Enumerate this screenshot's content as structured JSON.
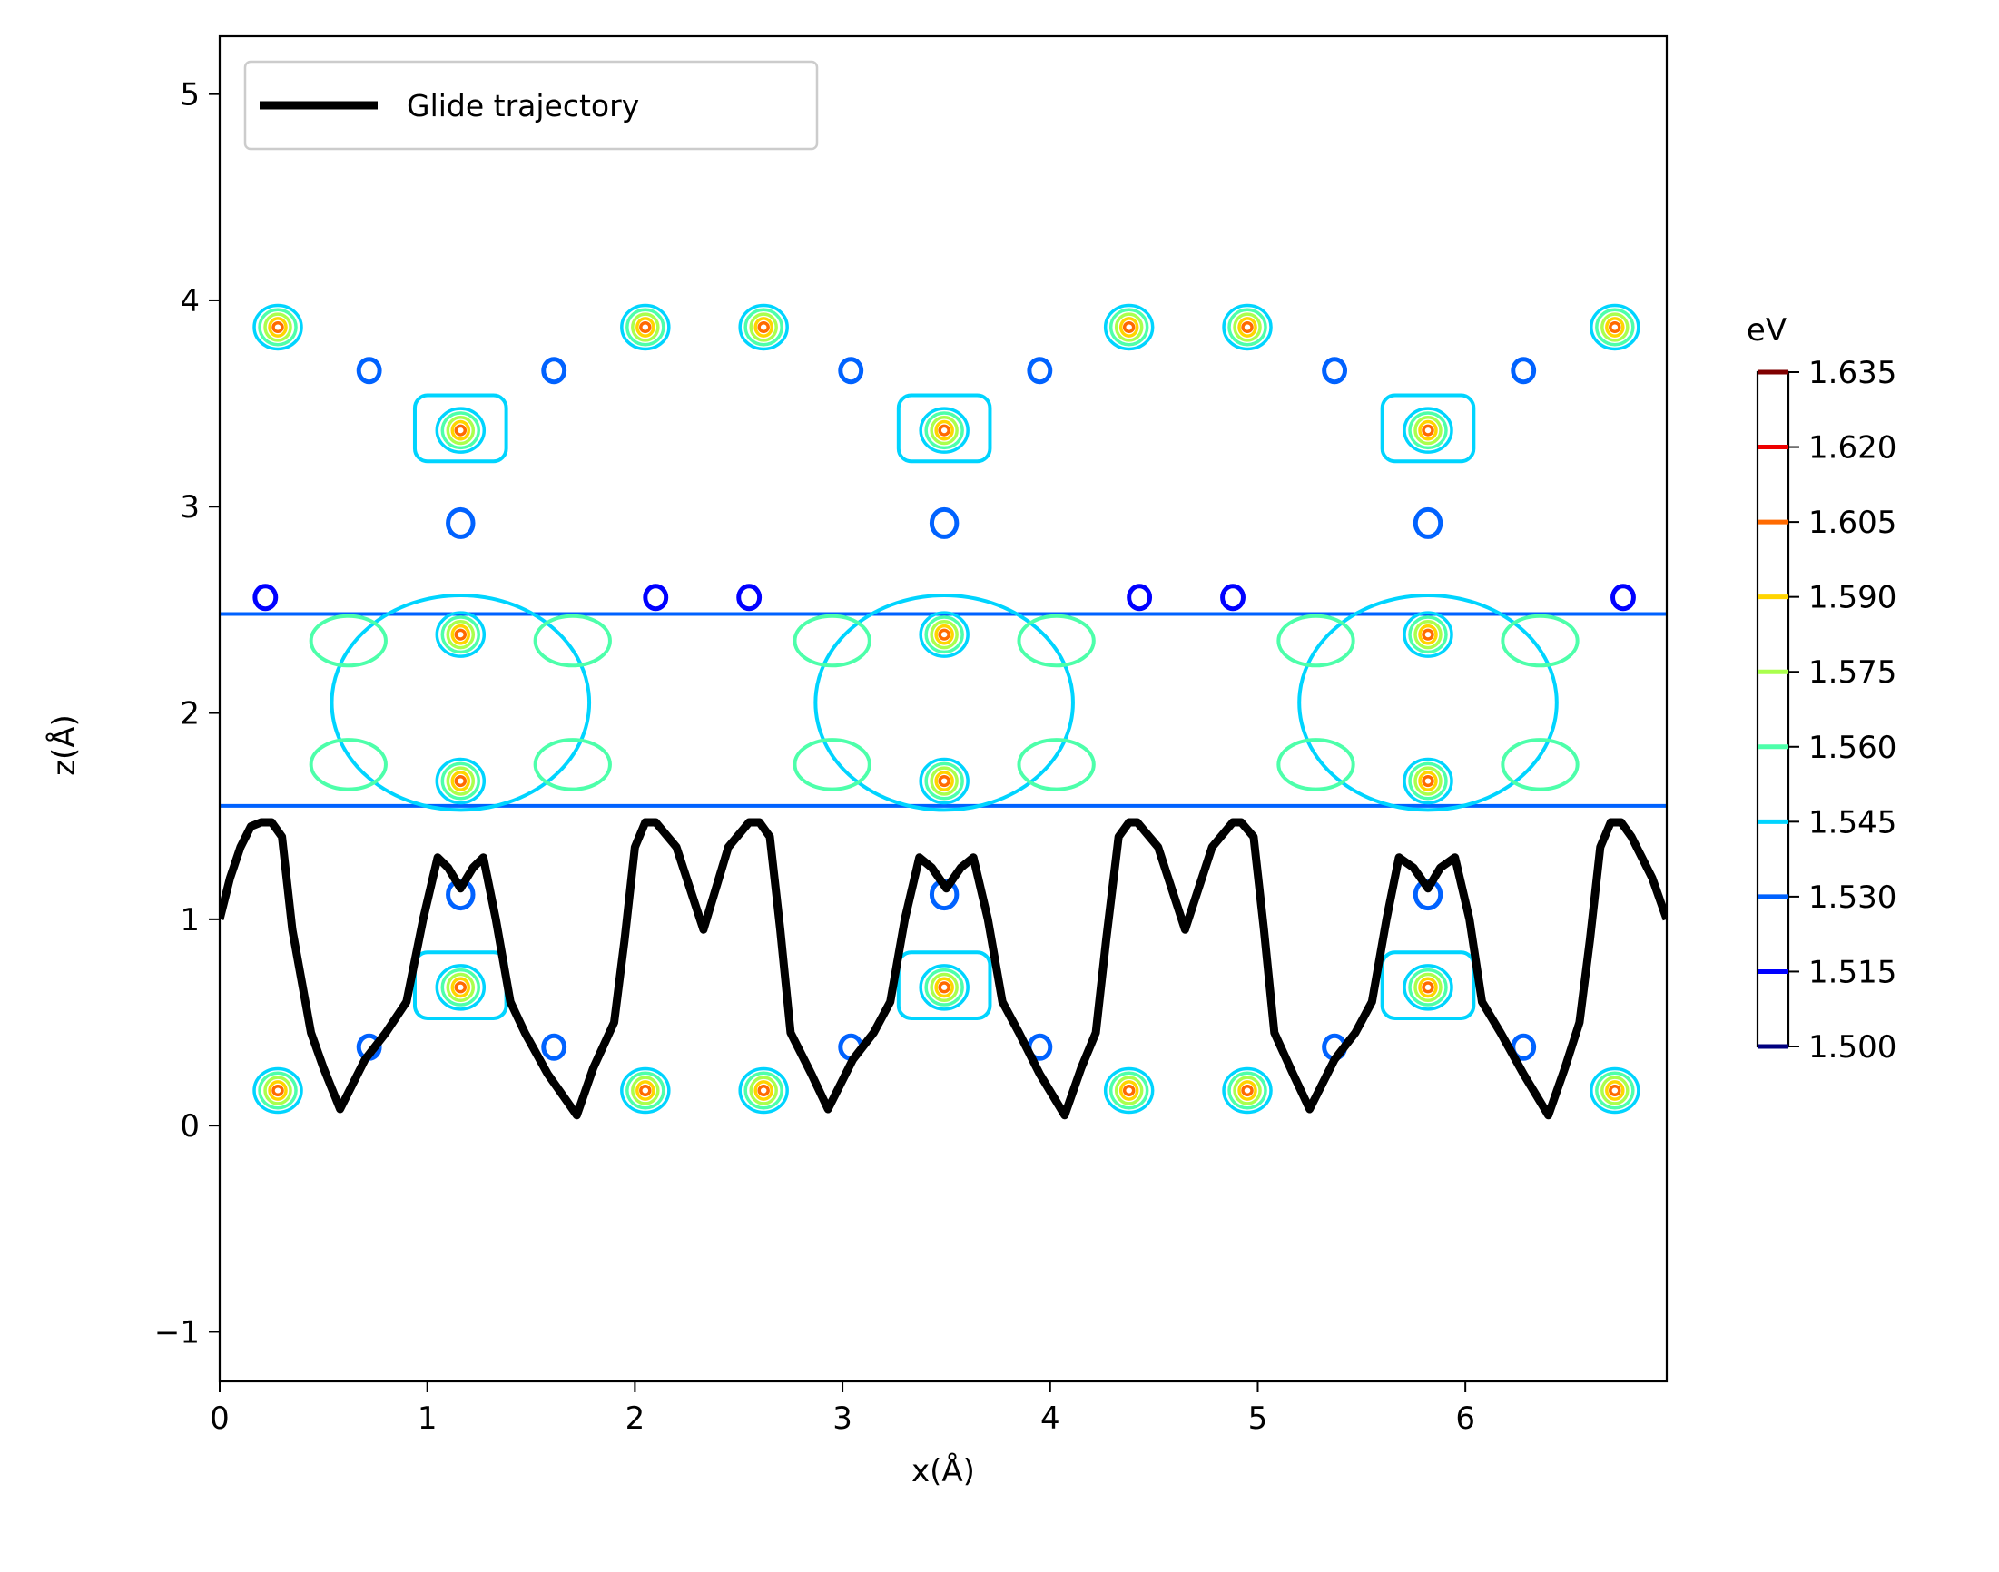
{
  "chart_data": {
    "type": "contour",
    "xlabel": "x(Å)",
    "ylabel": "z(Å)",
    "xlim": [
      0,
      6.97
    ],
    "ylim": [
      -1.24,
      5.28
    ],
    "x_ticks": [
      0,
      1,
      2,
      3,
      4,
      5,
      6
    ],
    "x_tick_labels": [
      "0",
      "1",
      "2",
      "3",
      "4",
      "5",
      "6"
    ],
    "y_ticks": [
      -1,
      0,
      1,
      2,
      3,
      4,
      5
    ],
    "y_tick_labels": [
      "−1",
      "0",
      "1",
      "2",
      "3",
      "4",
      "5"
    ],
    "grid": false,
    "legend": {
      "position": "upper-left",
      "entries": [
        "Glide trajectory"
      ]
    },
    "colorbar": {
      "title": "eV",
      "levels": [
        1.5,
        1.515,
        1.53,
        1.545,
        1.56,
        1.575,
        1.59,
        1.605,
        1.62,
        1.635
      ],
      "labels": [
        "1.500",
        "1.515",
        "1.530",
        "1.545",
        "1.560",
        "1.575",
        "1.590",
        "1.605",
        "1.620",
        "1.635"
      ],
      "colors": [
        "#00007f",
        "#0000ff",
        "#0062ff",
        "#00d4ff",
        "#4dffaa",
        "#aaff4d",
        "#ffd400",
        "#ff6a00",
        "#ee0000",
        "#7f0000"
      ]
    },
    "series": [
      {
        "name": "Glide trajectory",
        "color": "#000000",
        "x": [
          0.0,
          0.05,
          0.1,
          0.15,
          0.2,
          0.25,
          0.3,
          0.35,
          0.44,
          0.5,
          0.58,
          0.7,
          0.8,
          0.9,
          0.98,
          1.05,
          1.1,
          1.16,
          1.22,
          1.27,
          1.33,
          1.4,
          1.47,
          1.58,
          1.72,
          1.8,
          1.9,
          1.95,
          2.0,
          2.05,
          2.1,
          2.2,
          2.33,
          2.45,
          2.55,
          2.6,
          2.65,
          2.7,
          2.75,
          2.85,
          2.93,
          3.05,
          3.15,
          3.23,
          3.3,
          3.37,
          3.43,
          3.5,
          3.57,
          3.63,
          3.7,
          3.77,
          3.85,
          3.95,
          4.07,
          4.15,
          4.22,
          4.27,
          4.33,
          4.38,
          4.42,
          4.52,
          4.65,
          4.78,
          4.88,
          4.92,
          4.98,
          5.03,
          5.08,
          5.17,
          5.25,
          5.37,
          5.47,
          5.55,
          5.62,
          5.68,
          5.75,
          5.82,
          5.88,
          5.95,
          6.02,
          6.08,
          6.17,
          6.28,
          6.4,
          6.48,
          6.55,
          6.6,
          6.65,
          6.7,
          6.75,
          6.8,
          6.85,
          6.9,
          6.97
        ],
        "y": [
          1.0,
          1.2,
          1.35,
          1.45,
          1.47,
          1.47,
          1.4,
          0.95,
          0.45,
          0.28,
          0.08,
          0.32,
          0.45,
          0.6,
          1.0,
          1.3,
          1.25,
          1.15,
          1.25,
          1.3,
          1.0,
          0.6,
          0.45,
          0.25,
          0.05,
          0.28,
          0.5,
          0.9,
          1.35,
          1.47,
          1.47,
          1.35,
          0.95,
          1.35,
          1.47,
          1.47,
          1.4,
          0.95,
          0.45,
          0.25,
          0.08,
          0.32,
          0.45,
          0.6,
          1.0,
          1.3,
          1.25,
          1.15,
          1.25,
          1.3,
          1.0,
          0.6,
          0.45,
          0.25,
          0.05,
          0.28,
          0.45,
          0.9,
          1.4,
          1.47,
          1.47,
          1.35,
          0.95,
          1.35,
          1.47,
          1.47,
          1.4,
          0.95,
          0.45,
          0.25,
          0.08,
          0.32,
          0.45,
          0.6,
          1.0,
          1.3,
          1.25,
          1.15,
          1.25,
          1.3,
          1.0,
          0.6,
          0.45,
          0.25,
          0.05,
          0.28,
          0.5,
          0.9,
          1.35,
          1.47,
          1.47,
          1.4,
          1.3,
          1.2,
          1.0
        ]
      }
    ],
    "contour_features": [
      {
        "kind": "line",
        "level": 1.53,
        "z": 2.48
      },
      {
        "kind": "line",
        "level": 1.53,
        "z": 1.55
      },
      {
        "kind": "ellipse",
        "level": 1.545,
        "x": 1.16,
        "z": 2.05,
        "rx": 0.62,
        "ry": 0.52
      },
      {
        "kind": "ellipse",
        "level": 1.545,
        "x": 3.49,
        "z": 2.05,
        "rx": 0.62,
        "ry": 0.52
      },
      {
        "kind": "ellipse",
        "level": 1.545,
        "x": 5.82,
        "z": 2.05,
        "rx": 0.62,
        "ry": 0.52
      },
      {
        "kind": "ellipse",
        "level": 1.56,
        "x": 0.62,
        "z": 2.35,
        "rx": 0.18,
        "ry": 0.12
      },
      {
        "kind": "ellipse",
        "level": 1.56,
        "x": 1.7,
        "z": 2.35,
        "rx": 0.18,
        "ry": 0.12
      },
      {
        "kind": "ellipse",
        "level": 1.56,
        "x": 2.95,
        "z": 2.35,
        "rx": 0.18,
        "ry": 0.12
      },
      {
        "kind": "ellipse",
        "level": 1.56,
        "x": 4.03,
        "z": 2.35,
        "rx": 0.18,
        "ry": 0.12
      },
      {
        "kind": "ellipse",
        "level": 1.56,
        "x": 5.28,
        "z": 2.35,
        "rx": 0.18,
        "ry": 0.12
      },
      {
        "kind": "ellipse",
        "level": 1.56,
        "x": 6.36,
        "z": 2.35,
        "rx": 0.18,
        "ry": 0.12
      },
      {
        "kind": "ellipse",
        "level": 1.56,
        "x": 0.62,
        "z": 1.75,
        "rx": 0.18,
        "ry": 0.12
      },
      {
        "kind": "ellipse",
        "level": 1.56,
        "x": 1.7,
        "z": 1.75,
        "rx": 0.18,
        "ry": 0.12
      },
      {
        "kind": "ellipse",
        "level": 1.56,
        "x": 2.95,
        "z": 1.75,
        "rx": 0.18,
        "ry": 0.12
      },
      {
        "kind": "ellipse",
        "level": 1.56,
        "x": 4.03,
        "z": 1.75,
        "rx": 0.18,
        "ry": 0.12
      },
      {
        "kind": "ellipse",
        "level": 1.56,
        "x": 5.28,
        "z": 1.75,
        "rx": 0.18,
        "ry": 0.12
      },
      {
        "kind": "ellipse",
        "level": 1.56,
        "x": 6.36,
        "z": 1.75,
        "rx": 0.18,
        "ry": 0.12
      },
      {
        "kind": "peak",
        "x": 1.16,
        "z": 2.38
      },
      {
        "kind": "peak",
        "x": 3.49,
        "z": 2.38
      },
      {
        "kind": "peak",
        "x": 5.82,
        "z": 2.38
      },
      {
        "kind": "peak",
        "x": 1.16,
        "z": 1.67
      },
      {
        "kind": "peak",
        "x": 3.49,
        "z": 1.67
      },
      {
        "kind": "peak",
        "x": 5.82,
        "z": 1.67
      },
      {
        "kind": "box",
        "level": 1.545,
        "x": 1.16,
        "z": 3.38,
        "rx": 0.22,
        "ry": 0.16
      },
      {
        "kind": "box",
        "level": 1.545,
        "x": 3.49,
        "z": 3.38,
        "rx": 0.22,
        "ry": 0.16
      },
      {
        "kind": "box",
        "level": 1.545,
        "x": 5.82,
        "z": 3.38,
        "rx": 0.22,
        "ry": 0.16
      },
      {
        "kind": "box",
        "level": 1.545,
        "x": 1.16,
        "z": 0.68,
        "rx": 0.22,
        "ry": 0.16
      },
      {
        "kind": "box",
        "level": 1.545,
        "x": 3.49,
        "z": 0.68,
        "rx": 0.22,
        "ry": 0.16
      },
      {
        "kind": "box",
        "level": 1.545,
        "x": 5.82,
        "z": 0.68,
        "rx": 0.22,
        "ry": 0.16
      },
      {
        "kind": "peak",
        "x": 1.16,
        "z": 3.37
      },
      {
        "kind": "peak",
        "x": 3.49,
        "z": 3.37
      },
      {
        "kind": "peak",
        "x": 5.82,
        "z": 3.37
      },
      {
        "kind": "peak",
        "x": 1.16,
        "z": 0.67
      },
      {
        "kind": "peak",
        "x": 3.49,
        "z": 0.67
      },
      {
        "kind": "peak",
        "x": 5.82,
        "z": 0.67
      },
      {
        "kind": "peak",
        "x": 0.28,
        "z": 3.87
      },
      {
        "kind": "peak",
        "x": 2.05,
        "z": 3.87
      },
      {
        "kind": "peak",
        "x": 2.62,
        "z": 3.87
      },
      {
        "kind": "peak",
        "x": 4.38,
        "z": 3.87
      },
      {
        "kind": "peak",
        "x": 4.95,
        "z": 3.87
      },
      {
        "kind": "peak",
        "x": 6.72,
        "z": 3.87
      },
      {
        "kind": "peak",
        "x": 0.28,
        "z": 0.17
      },
      {
        "kind": "peak",
        "x": 2.05,
        "z": 0.17
      },
      {
        "kind": "peak",
        "x": 2.62,
        "z": 0.17
      },
      {
        "kind": "peak",
        "x": 4.38,
        "z": 0.17
      },
      {
        "kind": "peak",
        "x": 4.95,
        "z": 0.17
      },
      {
        "kind": "peak",
        "x": 6.72,
        "z": 0.17
      },
      {
        "kind": "ring",
        "level": 1.53,
        "x": 0.72,
        "z": 3.66,
        "r": 0.05
      },
      {
        "kind": "ring",
        "level": 1.53,
        "x": 1.61,
        "z": 3.66,
        "r": 0.05
      },
      {
        "kind": "ring",
        "level": 1.53,
        "x": 3.04,
        "z": 3.66,
        "r": 0.05
      },
      {
        "kind": "ring",
        "level": 1.53,
        "x": 3.95,
        "z": 3.66,
        "r": 0.05
      },
      {
        "kind": "ring",
        "level": 1.53,
        "x": 5.37,
        "z": 3.66,
        "r": 0.05
      },
      {
        "kind": "ring",
        "level": 1.53,
        "x": 6.28,
        "z": 3.66,
        "r": 0.05
      },
      {
        "kind": "ring",
        "level": 1.53,
        "x": 0.72,
        "z": 0.38,
        "r": 0.05
      },
      {
        "kind": "ring",
        "level": 1.53,
        "x": 1.61,
        "z": 0.38,
        "r": 0.05
      },
      {
        "kind": "ring",
        "level": 1.53,
        "x": 3.04,
        "z": 0.38,
        "r": 0.05
      },
      {
        "kind": "ring",
        "level": 1.53,
        "x": 3.95,
        "z": 0.38,
        "r": 0.05
      },
      {
        "kind": "ring",
        "level": 1.53,
        "x": 5.37,
        "z": 0.38,
        "r": 0.05
      },
      {
        "kind": "ring",
        "level": 1.53,
        "x": 6.28,
        "z": 0.38,
        "r": 0.05
      },
      {
        "kind": "ring",
        "level": 1.53,
        "x": 1.16,
        "z": 2.92,
        "r": 0.06
      },
      {
        "kind": "ring",
        "level": 1.53,
        "x": 3.49,
        "z": 2.92,
        "r": 0.06
      },
      {
        "kind": "ring",
        "level": 1.53,
        "x": 5.82,
        "z": 2.92,
        "r": 0.06
      },
      {
        "kind": "ring",
        "level": 1.53,
        "x": 1.16,
        "z": 1.12,
        "r": 0.06
      },
      {
        "kind": "ring",
        "level": 1.53,
        "x": 3.49,
        "z": 1.12,
        "r": 0.06
      },
      {
        "kind": "ring",
        "level": 1.53,
        "x": 5.82,
        "z": 1.12,
        "r": 0.06
      },
      {
        "kind": "ring",
        "level": 1.515,
        "x": 0.22,
        "z": 2.56,
        "r": 0.05
      },
      {
        "kind": "ring",
        "level": 1.515,
        "x": 2.1,
        "z": 2.56,
        "r": 0.05
      },
      {
        "kind": "ring",
        "level": 1.515,
        "x": 2.55,
        "z": 2.56,
        "r": 0.05
      },
      {
        "kind": "ring",
        "level": 1.515,
        "x": 4.43,
        "z": 2.56,
        "r": 0.05
      },
      {
        "kind": "ring",
        "level": 1.515,
        "x": 4.88,
        "z": 2.56,
        "r": 0.05
      },
      {
        "kind": "ring",
        "level": 1.515,
        "x": 6.76,
        "z": 2.56,
        "r": 0.05
      }
    ]
  }
}
